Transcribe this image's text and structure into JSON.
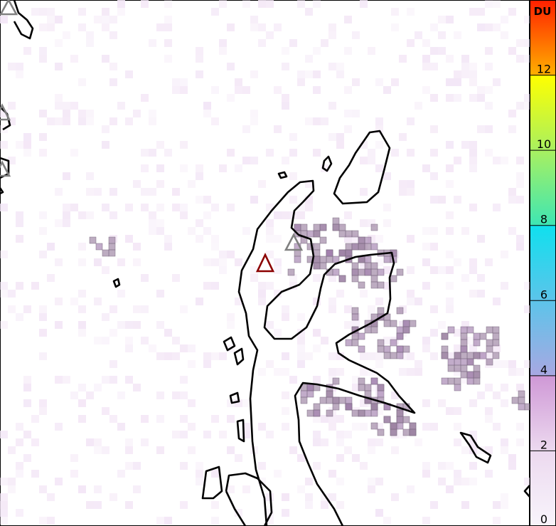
{
  "map": {
    "type": "SO2 column density map",
    "coastline_color": "#000000",
    "volcano_markers": [
      {
        "status": "active",
        "color": "#8b0000"
      },
      {
        "status": "other",
        "color": "#808080"
      },
      {
        "status": "other",
        "color": "#808080"
      },
      {
        "status": "other",
        "color": "#808080"
      },
      {
        "status": "other",
        "color": "#808080"
      }
    ],
    "plume_color": "#9a7fa0"
  },
  "colorbar": {
    "unit": "DU",
    "ticks": [
      "0",
      "2",
      "4",
      "6",
      "8",
      "10",
      "12"
    ],
    "range": [
      0,
      14
    ],
    "stops": [
      {
        "value": 0,
        "color": "#f8f4fb"
      },
      {
        "value": 2,
        "color": "#ecd9ef"
      },
      {
        "value": 4,
        "color": "#cf98d6"
      },
      {
        "value": 4,
        "color": "#a8a8e2"
      },
      {
        "value": 6,
        "color": "#5cc4ea"
      },
      {
        "value": 8,
        "color": "#10e0ee"
      },
      {
        "value": 8,
        "color": "#3ee6b4"
      },
      {
        "value": 10,
        "color": "#a8f060"
      },
      {
        "value": 12,
        "color": "#ffff00"
      },
      {
        "value": 12,
        "color": "#ffb000"
      },
      {
        "value": 14,
        "color": "#ff2000"
      }
    ]
  }
}
